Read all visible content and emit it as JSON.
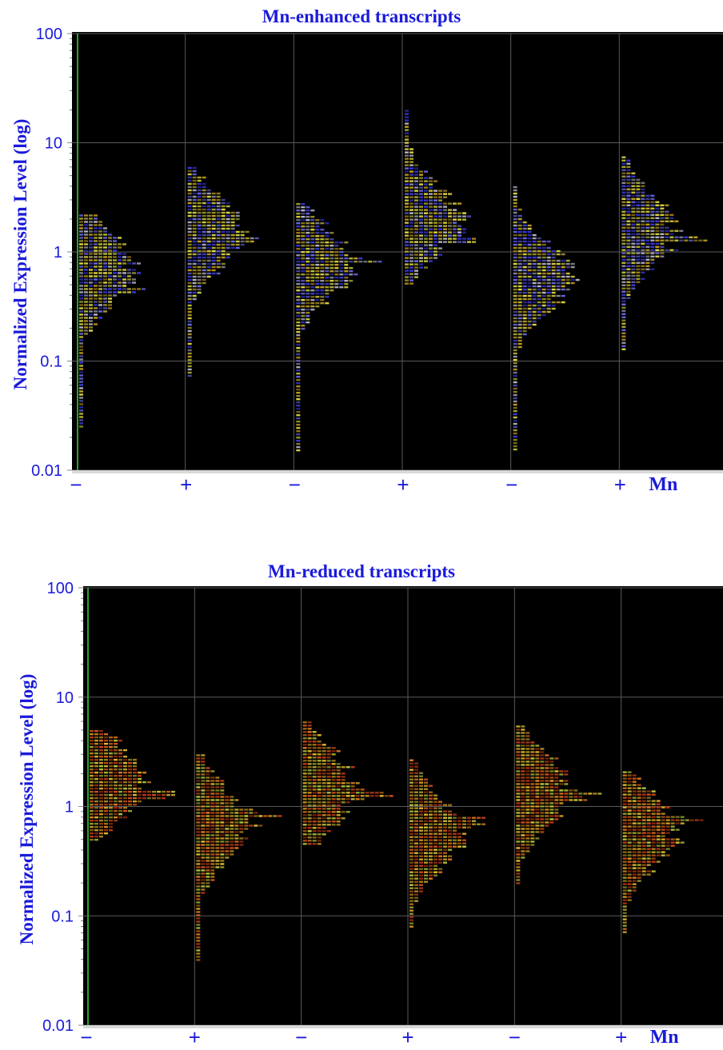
{
  "colors": {
    "label_blue": "#1a1adb",
    "plot_bg": "#000000",
    "grid": "#5a5a5a",
    "baseline_green": "#2f9e2f",
    "enhanced_palette": [
      "#3a3ae0",
      "#6a6ae8",
      "#b8b8c8",
      "#d4d440",
      "#e6d84a",
      "#c8a020"
    ],
    "reduced_palette": [
      "#e0c030",
      "#d8a020",
      "#e07a20",
      "#d05020",
      "#c03818",
      "#b8c840"
    ]
  },
  "chart_data": [
    {
      "type": "scatter",
      "title": "Mn-enhanced transcripts",
      "ylabel": "Normalized Expression Level (log)",
      "y_scale": "log",
      "ylim": [
        0.01,
        100
      ],
      "y_ticks": [
        "100",
        "10",
        "1",
        "0.1",
        "0.01"
      ],
      "categories": [
        "−",
        "+",
        "−",
        "+",
        "−",
        "+"
      ],
      "condition_label": "Mn",
      "grid": true,
      "distributions": [
        {
          "mn": "−",
          "median": 0.7,
          "min": 0.025,
          "max": 2.2,
          "peak": 0.45
        },
        {
          "mn": "+",
          "median": 1.5,
          "min": 0.07,
          "max": 6.0,
          "peak": 1.3
        },
        {
          "mn": "−",
          "median": 0.8,
          "min": 0.015,
          "max": 2.8,
          "peak": 0.85
        },
        {
          "mn": "+",
          "median": 2.0,
          "min": 0.5,
          "max": 20.0,
          "peak": 1.3
        },
        {
          "mn": "−",
          "median": 0.6,
          "min": 0.015,
          "max": 4.0,
          "peak": 0.75
        },
        {
          "mn": "+",
          "median": 1.6,
          "min": 0.13,
          "max": 7.5,
          "peak": 1.3
        }
      ]
    },
    {
      "type": "scatter",
      "title": "Mn-reduced transcripts",
      "ylabel": "Normalized Expression Level (log)",
      "y_scale": "log",
      "ylim": [
        0.01,
        100
      ],
      "y_ticks": [
        "100",
        "10",
        "1",
        "0.1",
        "0.01"
      ],
      "categories": [
        "−",
        "+",
        "−",
        "+",
        "−",
        "+"
      ],
      "condition_label": "Mn",
      "grid": true,
      "distributions": [
        {
          "mn": "−",
          "median": 1.7,
          "min": 0.5,
          "max": 5.0,
          "peak": 1.3
        },
        {
          "mn": "+",
          "median": 0.7,
          "min": 0.04,
          "max": 3.0,
          "peak": 0.85
        },
        {
          "mn": "−",
          "median": 1.5,
          "min": 0.45,
          "max": 6.0,
          "peak": 1.3
        },
        {
          "mn": "+",
          "median": 0.6,
          "min": 0.08,
          "max": 2.7,
          "peak": 0.75
        },
        {
          "mn": "−",
          "median": 1.4,
          "min": 0.2,
          "max": 5.5,
          "peak": 1.25
        },
        {
          "mn": "+",
          "median": 0.6,
          "min": 0.07,
          "max": 2.1,
          "peak": 0.75
        }
      ]
    }
  ]
}
